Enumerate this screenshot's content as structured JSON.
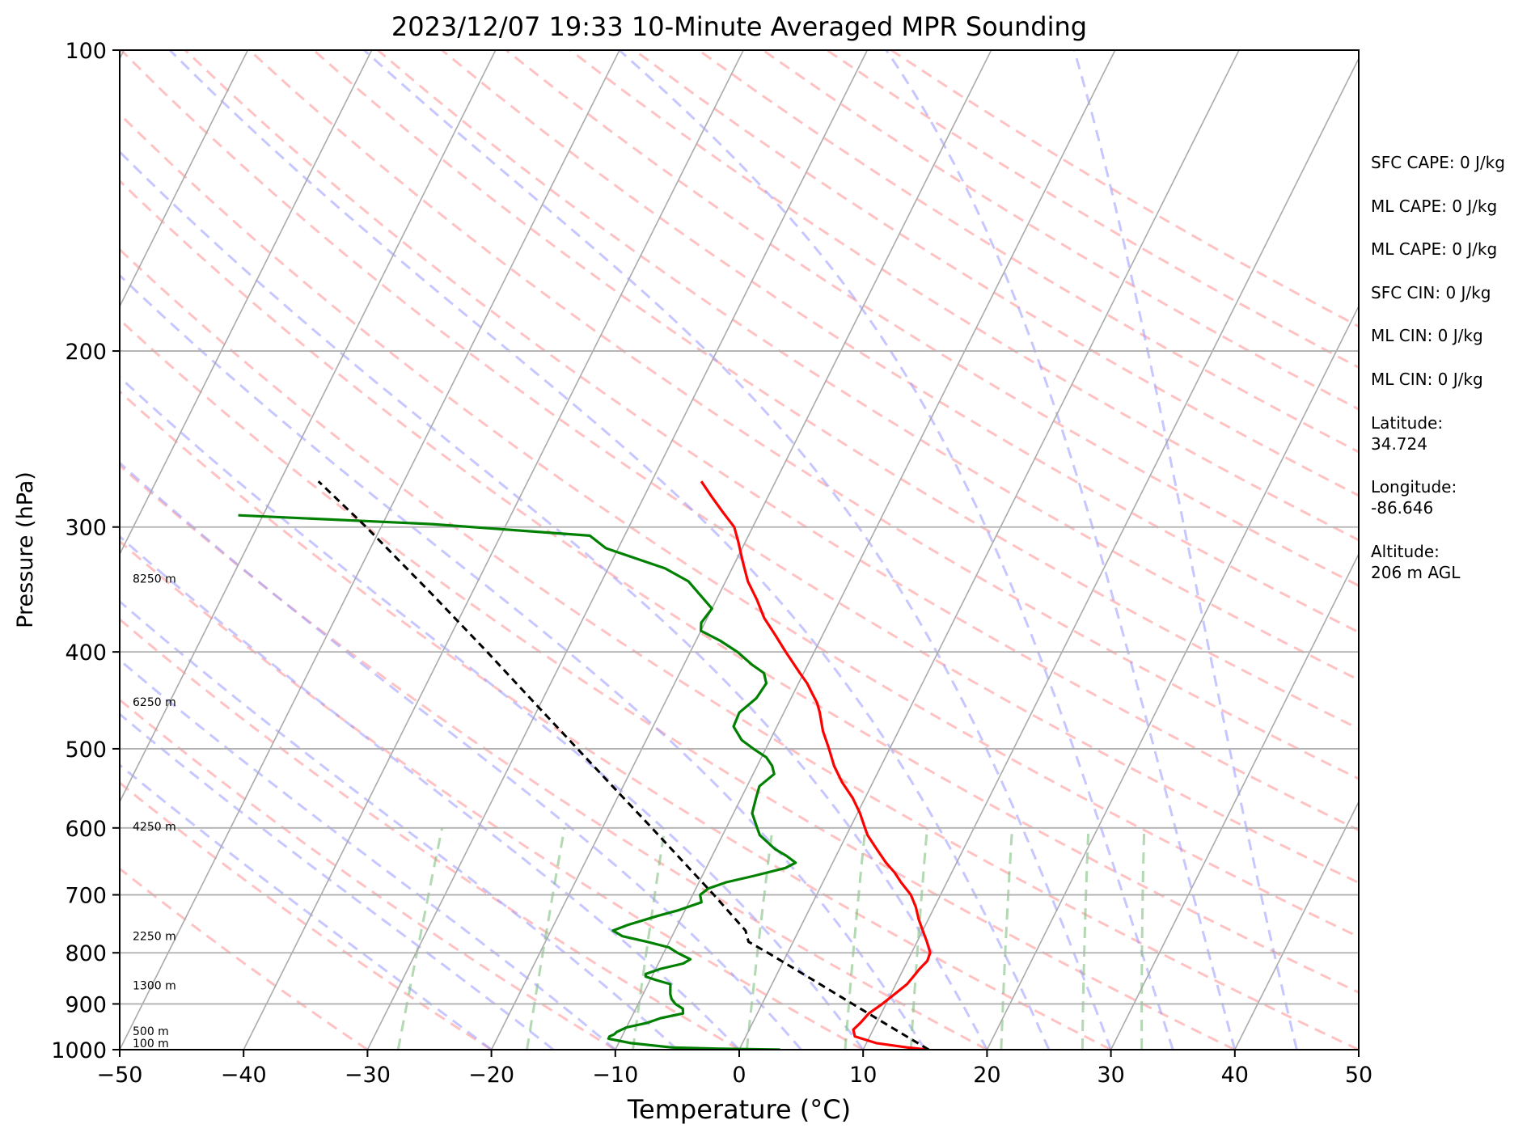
{
  "chart_data": {
    "type": "line",
    "title": "2023/12/07 19:33 10-Minute Averaged MPR Sounding",
    "xlabel": "Temperature (°C)",
    "ylabel": "Pressure (hPa)",
    "xlim": [
      -50,
      50
    ],
    "ylim": [
      1000,
      100
    ],
    "y_scale": "log",
    "skew": "skew-T",
    "grid": true,
    "x_ticks": [
      -50,
      -40,
      -30,
      -20,
      -10,
      0,
      10,
      20,
      30,
      40,
      50
    ],
    "x_tick_labels": [
      "−50",
      "−40",
      "−30",
      "−20",
      "−10",
      "0",
      "10",
      "20",
      "30",
      "40",
      "50"
    ],
    "y_ticks": [
      1000,
      900,
      800,
      700,
      600,
      500,
      400,
      300,
      200,
      100
    ],
    "y_tick_labels": [
      "1000",
      "900",
      "800",
      "700",
      "600",
      "500",
      "400",
      "300",
      "200",
      "100"
    ],
    "series": [
      {
        "role": "temperature",
        "color": "#ff0000",
        "style": "solid",
        "points": [
          [
            1000,
            15.3
          ],
          [
            995,
            13.5
          ],
          [
            985,
            10.8
          ],
          [
            970,
            8.8
          ],
          [
            955,
            8.4
          ],
          [
            940,
            8.7
          ],
          [
            920,
            9.0
          ],
          [
            900,
            9.7
          ],
          [
            880,
            10.3
          ],
          [
            860,
            10.9
          ],
          [
            845,
            11.1
          ],
          [
            830,
            11.3
          ],
          [
            815,
            11.6
          ],
          [
            800,
            11.5
          ],
          [
            780,
            10.8
          ],
          [
            760,
            10.0
          ],
          [
            740,
            9.2
          ],
          [
            720,
            8.5
          ],
          [
            700,
            7.6
          ],
          [
            680,
            6.3
          ],
          [
            665,
            5.4
          ],
          [
            650,
            4.3
          ],
          [
            630,
            3.0
          ],
          [
            610,
            1.7
          ],
          [
            600,
            1.2
          ],
          [
            580,
            0.2
          ],
          [
            560,
            -1.0
          ],
          [
            540,
            -2.5
          ],
          [
            520,
            -3.8
          ],
          [
            500,
            -4.9
          ],
          [
            480,
            -6.1
          ],
          [
            460,
            -7.1
          ],
          [
            450,
            -7.7
          ],
          [
            440,
            -8.5
          ],
          [
            430,
            -9.3
          ],
          [
            420,
            -10.3
          ],
          [
            400,
            -12.3
          ],
          [
            385,
            -13.8
          ],
          [
            370,
            -15.4
          ],
          [
            355,
            -16.7
          ],
          [
            340,
            -18.2
          ],
          [
            325,
            -19.4
          ],
          [
            310,
            -20.6
          ],
          [
            300,
            -21.5
          ],
          [
            290,
            -23.0
          ],
          [
            280,
            -24.5
          ],
          [
            270,
            -26.0
          ]
        ]
      },
      {
        "role": "dewpoint",
        "color": "#008000",
        "style": "solid",
        "points": [
          [
            1000,
            3.3
          ],
          [
            998,
            -1.5
          ],
          [
            995,
            -5.5
          ],
          [
            985,
            -9.0
          ],
          [
            975,
            -11.0
          ],
          [
            970,
            -11.0
          ],
          [
            965,
            -10.7
          ],
          [
            960,
            -10.6
          ],
          [
            950,
            -10.0
          ],
          [
            940,
            -8.5
          ],
          [
            930,
            -7.6
          ],
          [
            920,
            -6.0
          ],
          [
            910,
            -6.2
          ],
          [
            900,
            -7.0
          ],
          [
            890,
            -7.5
          ],
          [
            880,
            -7.8
          ],
          [
            870,
            -8.0
          ],
          [
            860,
            -8.2
          ],
          [
            852,
            -9.5
          ],
          [
            845,
            -10.5
          ],
          [
            840,
            -10.6
          ],
          [
            830,
            -9.6
          ],
          [
            820,
            -8.0
          ],
          [
            812,
            -7.6
          ],
          [
            800,
            -8.9
          ],
          [
            790,
            -9.8
          ],
          [
            780,
            -11.8
          ],
          [
            770,
            -14.0
          ],
          [
            760,
            -15.0
          ],
          [
            750,
            -14.0
          ],
          [
            735,
            -12.0
          ],
          [
            725,
            -10.5
          ],
          [
            712,
            -9.0
          ],
          [
            700,
            -9.4
          ],
          [
            690,
            -9.0
          ],
          [
            680,
            -7.8
          ],
          [
            670,
            -5.8
          ],
          [
            658,
            -3.6
          ],
          [
            650,
            -3.0
          ],
          [
            640,
            -4.0
          ],
          [
            630,
            -5.2
          ],
          [
            610,
            -7.0
          ],
          [
            600,
            -7.5
          ],
          [
            580,
            -8.5
          ],
          [
            560,
            -8.8
          ],
          [
            545,
            -9.0
          ],
          [
            530,
            -8.3
          ],
          [
            520,
            -8.8
          ],
          [
            510,
            -9.6
          ],
          [
            500,
            -11.0
          ],
          [
            490,
            -12.3
          ],
          [
            475,
            -13.5
          ],
          [
            460,
            -13.6
          ],
          [
            445,
            -12.8
          ],
          [
            430,
            -12.6
          ],
          [
            420,
            -13.2
          ],
          [
            412,
            -14.5
          ],
          [
            400,
            -16.2
          ],
          [
            390,
            -18.0
          ],
          [
            381,
            -20.0
          ],
          [
            374,
            -20.3
          ],
          [
            362,
            -20.0
          ],
          [
            340,
            -23.0
          ],
          [
            330,
            -25.4
          ],
          [
            315,
            -31.0
          ],
          [
            306,
            -32.8
          ],
          [
            298,
            -46.0
          ],
          [
            292,
            -62.0
          ]
        ]
      },
      {
        "role": "parcel",
        "color": "#000000",
        "style": "dashed",
        "points": [
          [
            1000,
            15.3
          ],
          [
            950,
            11.4
          ],
          [
            900,
            7.3
          ],
          [
            850,
            3.0
          ],
          [
            800,
            -1.6
          ],
          [
            780,
            -3.6
          ],
          [
            760,
            -4.3
          ],
          [
            700,
            -8.3
          ],
          [
            650,
            -12.0
          ],
          [
            600,
            -16.0
          ],
          [
            550,
            -20.4
          ],
          [
            500,
            -25.2
          ],
          [
            450,
            -30.5
          ],
          [
            400,
            -36.4
          ],
          [
            350,
            -43.2
          ],
          [
            300,
            -51.2
          ],
          [
            270,
            -56.9
          ]
        ]
      }
    ],
    "reference_lines": {
      "isotherms": {
        "color": "#aaaaaa",
        "style": "solid",
        "interval_c": 10
      },
      "dry_adiabats": {
        "color": "#ff9999",
        "style": "dashed"
      },
      "moist_adiabats": {
        "color": "#9999ff",
        "style": "dashed"
      },
      "mixing_ratio_lines": {
        "color": "#80c080",
        "style": "dashed",
        "top_hpa": 600
      }
    },
    "height_labels": [
      {
        "pressure_hpa": 985,
        "text": "100 m"
      },
      {
        "pressure_hpa": 958,
        "text": "500 m"
      },
      {
        "pressure_hpa": 862,
        "text": "1300 m"
      },
      {
        "pressure_hpa": 770,
        "text": "2250 m"
      },
      {
        "pressure_hpa": 598,
        "text": "4250 m"
      },
      {
        "pressure_hpa": 449,
        "text": "6250 m"
      },
      {
        "pressure_hpa": 338,
        "text": "8250 m"
      }
    ],
    "annotations": [
      "SFC CAPE: 0 J/kg",
      "ML CAPE: 0 J/kg",
      "ML CAPE: 0 J/kg",
      "SFC CIN: 0 J/kg",
      "ML CIN: 0 J/kg",
      "ML CIN: 0 J/kg",
      "Latitude:",
      "34.724",
      "Longitude:",
      "-86.646",
      "Altitude:",
      "206 m AGL"
    ]
  }
}
